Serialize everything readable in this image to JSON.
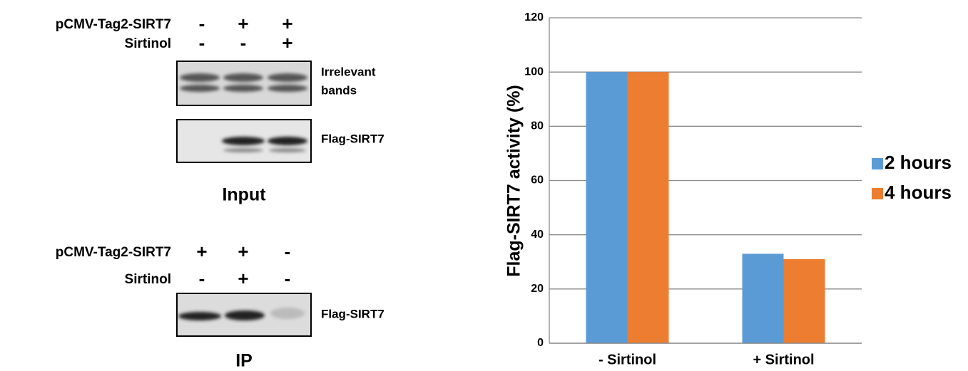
{
  "blots": {
    "input": {
      "rows": [
        {
          "label": "pCMV-Tag2-SIRT7",
          "signs": [
            "-",
            "+",
            "+"
          ]
        },
        {
          "label": "Sirtinol",
          "signs": [
            "-",
            "-",
            "+"
          ]
        }
      ],
      "bands": [
        [
          "Irrelevant",
          "bands"
        ],
        [
          "Flag-SIRT7"
        ]
      ],
      "caption": "Input"
    },
    "ip": {
      "rows": [
        {
          "label": "pCMV-Tag2-SIRT7",
          "signs": [
            "+",
            "+",
            "-"
          ]
        },
        {
          "label": "Sirtinol",
          "signs": [
            "-",
            "+",
            "-"
          ]
        }
      ],
      "bands": [
        [
          "Flag-SIRT7"
        ]
      ],
      "caption": "IP"
    }
  },
  "chart_data": {
    "type": "bar",
    "y_label": "Flag-SIRT7 activity (%)",
    "categories": [
      "- Sirtinol",
      "+ Sirtinol"
    ],
    "series": [
      {
        "name": "2 hours",
        "color": "#5b9bd5",
        "values": [
          100,
          33
        ]
      },
      {
        "name": "4 hours",
        "color": "#ed7d31",
        "values": [
          100,
          31
        ]
      }
    ],
    "ylim": [
      0,
      120
    ],
    "yticks": [
      0,
      20,
      40,
      60,
      80,
      100,
      120
    ],
    "grid": true,
    "legend": "right"
  }
}
